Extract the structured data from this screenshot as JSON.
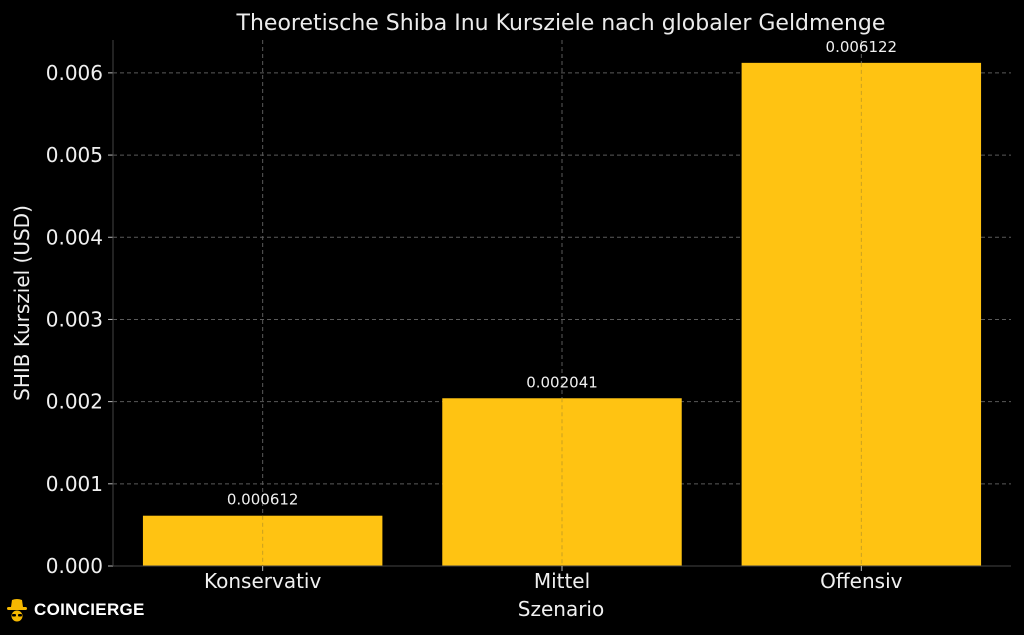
{
  "chart_data": {
    "type": "bar",
    "title": "Theoretische Shiba Inu Kursziele nach globaler Geldmenge",
    "xlabel": "Szenario",
    "ylabel": "SHIB Kursziel (USD)",
    "categories": [
      "Konservativ",
      "Mittel",
      "Offensiv"
    ],
    "values": [
      0.000612,
      0.002041,
      0.006122
    ],
    "value_labels": [
      "0.000612",
      "0.002041",
      "0.006122"
    ],
    "ylim": [
      0,
      0.0064
    ],
    "yticks": [
      0,
      0.001,
      0.002,
      0.003,
      0.004,
      0.005,
      0.006
    ],
    "ytick_labels": [
      "0.000",
      "0.001",
      "0.002",
      "0.003",
      "0.004",
      "0.005",
      "0.006"
    ],
    "grid": true,
    "grid_style": "dashed",
    "bar_color": "#FFC312",
    "background_color": "#000000",
    "grid_color": "#5a5a5a"
  },
  "branding": {
    "logo_text": "COINCIERGE",
    "logo_icon": "detective-hat-icon",
    "logo_color": "#F5B800"
  }
}
